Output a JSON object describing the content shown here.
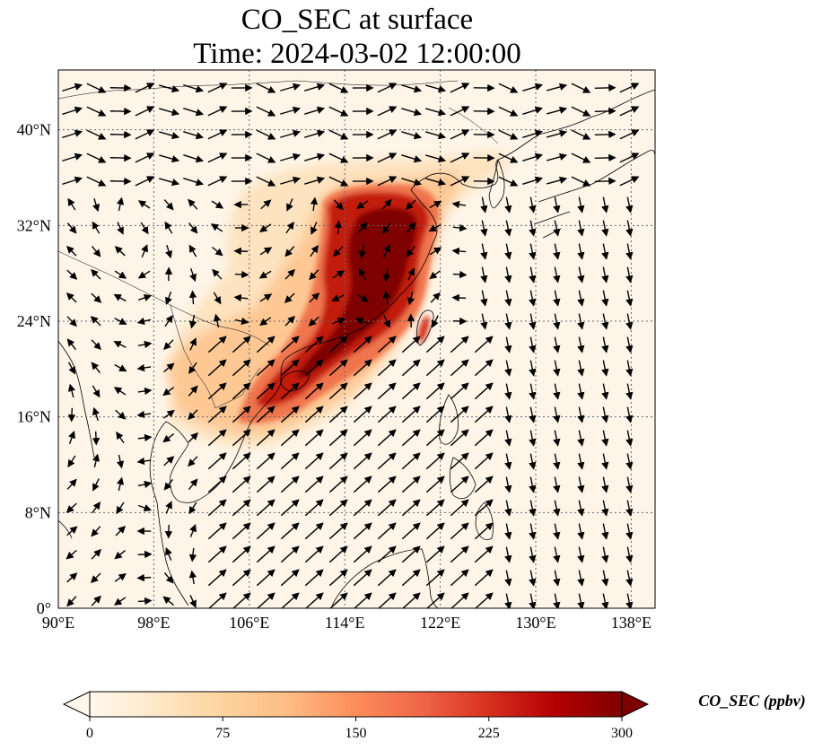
{
  "title": {
    "line1": "CO_SEC at surface",
    "line2": "Time: 2024-03-02 12:00:00"
  },
  "map": {
    "extent": {
      "lon": [
        90,
        140
      ],
      "lat": [
        0,
        45
      ]
    },
    "lon_ticks": [
      {
        "value": 90,
        "label": "90°E"
      },
      {
        "value": 98,
        "label": "98°E"
      },
      {
        "value": 106,
        "label": "106°E"
      },
      {
        "value": 114,
        "label": "114°E"
      },
      {
        "value": 122,
        "label": "122°E"
      },
      {
        "value": 130,
        "label": "130°E"
      },
      {
        "value": 138,
        "label": "138°E"
      }
    ],
    "lat_ticks": [
      {
        "value": 0,
        "label": "0°"
      },
      {
        "value": 8,
        "label": "8°N"
      },
      {
        "value": 16,
        "label": "16°N"
      },
      {
        "value": 24,
        "label": "24°N"
      },
      {
        "value": 32,
        "label": "32°N"
      },
      {
        "value": 40,
        "label": "40°N"
      }
    ],
    "gridlines": true,
    "variable": "CO_SEC",
    "units": "ppbv"
  },
  "colorbar": {
    "label": "CO_SEC (ppbv)",
    "min": 0,
    "max": 300,
    "ticks": [
      {
        "value": 0,
        "label": "0"
      },
      {
        "value": 75,
        "label": "75"
      },
      {
        "value": 150,
        "label": "150"
      },
      {
        "value": 225,
        "label": "225"
      },
      {
        "value": 300,
        "label": "300"
      }
    ],
    "colormap": "OrRd",
    "extend": "both",
    "colors": [
      "#fff7ec",
      "#fee8c8",
      "#fdd49e",
      "#fdbb84",
      "#fc8d59",
      "#ef6548",
      "#d7301f",
      "#b30000",
      "#7f0000"
    ]
  }
}
